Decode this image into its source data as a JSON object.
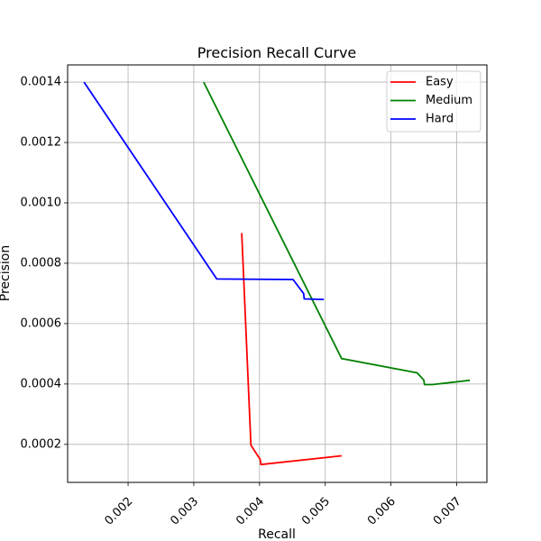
{
  "chart_data": {
    "type": "line",
    "title": "Precision Recall Curve",
    "xlabel": "Recall",
    "ylabel": "Precision",
    "xlim": [
      0.00108,
      0.00746
    ],
    "ylim": [
      7.4e-05,
      0.001457
    ],
    "xticks": [
      0.002,
      0.003,
      0.004,
      0.005,
      0.006,
      0.007
    ],
    "xtick_labels": [
      "0.002",
      "0.003",
      "0.004",
      "0.005",
      "0.006",
      "0.007"
    ],
    "yticks": [
      0.0002,
      0.0004,
      0.0006,
      0.0008,
      0.001,
      0.0012,
      0.0014
    ],
    "ytick_labels": [
      "0.0002",
      "0.0004",
      "0.0006",
      "0.0008",
      "0.0010",
      "0.0012",
      "0.0014"
    ],
    "grid": true,
    "legend_position": "top-right",
    "series": [
      {
        "name": "Easy",
        "color": "#ff0000",
        "points": [
          [
            0.00373,
            0.0009
          ],
          [
            0.00387,
            0.000197
          ],
          [
            0.00401,
            0.00015
          ],
          [
            0.00402,
            0.000133
          ],
          [
            0.00525,
            0.000162
          ]
        ]
      },
      {
        "name": "Medium",
        "color": "#008000",
        "points": [
          [
            0.00315,
            0.0014
          ],
          [
            0.00525,
            0.000484
          ],
          [
            0.0064,
            0.000437
          ],
          [
            0.0065,
            0.000413
          ],
          [
            0.00651,
            0.000398
          ],
          [
            0.00663,
            0.000398
          ],
          [
            0.0072,
            0.000412
          ]
        ]
      },
      {
        "name": "Hard",
        "color": "#0000ff",
        "points": [
          [
            0.00133,
            0.0014
          ],
          [
            0.00335,
            0.000748
          ],
          [
            0.00451,
            0.000746
          ],
          [
            0.00467,
            0.0007
          ],
          [
            0.00468,
            0.000682
          ],
          [
            0.00498,
            0.00068
          ]
        ]
      }
    ]
  }
}
